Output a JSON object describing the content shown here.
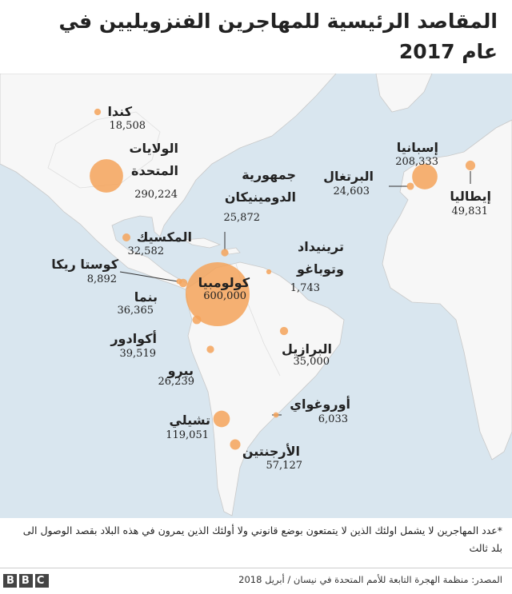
{
  "chart_data": {
    "type": "bubble-map",
    "title": "المقاصد الرئيسية للمهاجرين الفنزويليين في عام 2017",
    "color": "#f4a35a",
    "categories": [
      "كندا",
      "الولايات المتحدة",
      "جمهورية الدومينيكان",
      "المكسيك",
      "كوستا ريكا",
      "بنما",
      "كولومبيا",
      "ترينيداد وتوباغو",
      "أكوادور",
      "بيرو",
      "البرازيل",
      "أوروغواي",
      "تشيلي",
      "الأرجنتين",
      "إسبانيا",
      "البرتغال",
      "إيطاليا"
    ],
    "values": [
      18508,
      290224,
      25872,
      32582,
      8892,
      36365,
      600000,
      1743,
      39519,
      26239,
      35000,
      6033,
      119051,
      57127,
      208333,
      24603,
      49831
    ],
    "value_labels": [
      "18,508",
      "290,224",
      "25,872",
      "32,582",
      "8,892",
      "36,365",
      "600,000",
      "1,743",
      "39,519",
      "26,239",
      "35,000",
      "6,033",
      "119,051",
      "57,127",
      "208,333",
      "24,603",
      "49,831"
    ],
    "footnote": "*عدد المهاجرين لا يشمل اولئك الذين لا يتمتعون بوضع قانوني ولا أولئك الذين يمرون في هذه البلاد بقصد الوصول الى بلد ثالث",
    "source": "المصدر: منظمة الهجرة التابعة للأمم المتحدة في نيسان / أبريل 2018",
    "logo": "BBC"
  }
}
